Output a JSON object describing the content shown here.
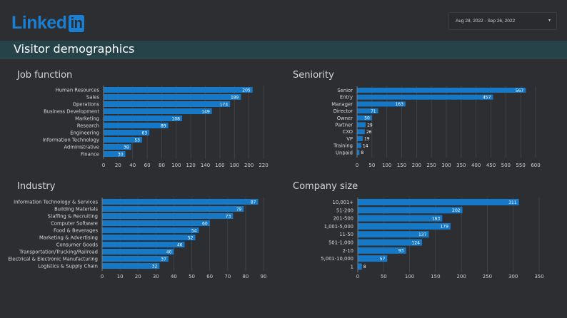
{
  "header": {
    "logo_text": "Linked",
    "logo_badge": "in",
    "date_range": "Aug 28, 2022 - Sep 26, 2022",
    "date_caret": "▾"
  },
  "banner": {
    "title": "Visitor demographics"
  },
  "colors": {
    "bar": "#1679c7",
    "background": "#2d2e32",
    "banner": "#26434a"
  },
  "panels": {
    "job_function": "Job function",
    "seniority": "Seniority",
    "industry": "Industry",
    "company_size": "Company size"
  },
  "chart_data": [
    {
      "id": "job_function",
      "type": "bar",
      "orientation": "horizontal",
      "title": "Job function",
      "categories": [
        "Human Resources",
        "Sales",
        "Operations",
        "Business Development",
        "Marketing",
        "Research",
        "Engineering",
        "Information Technology",
        "Administrative",
        "Finance"
      ],
      "values": [
        205,
        189,
        174,
        149,
        108,
        89,
        63,
        53,
        38,
        30
      ],
      "xlim": [
        0,
        220
      ],
      "xticks": [
        0,
        20,
        40,
        60,
        80,
        100,
        120,
        140,
        160,
        180,
        200,
        220
      ],
      "grid": true
    },
    {
      "id": "seniority",
      "type": "bar",
      "orientation": "horizontal",
      "title": "Seniority",
      "categories": [
        "Senior",
        "Entry",
        "Manager",
        "Director",
        "Owner",
        "Partner",
        "CXO",
        "VP",
        "Training",
        "Unpaid"
      ],
      "values": [
        567,
        457,
        163,
        71,
        50,
        29,
        26,
        19,
        14,
        8
      ],
      "xlim": [
        0,
        600
      ],
      "xticks": [
        0,
        50,
        100,
        150,
        200,
        250,
        300,
        350,
        400,
        450,
        500,
        550,
        600
      ],
      "grid": true
    },
    {
      "id": "industry",
      "type": "bar",
      "orientation": "horizontal",
      "title": "Industry",
      "categories": [
        "Information Technology & Services",
        "Building Materials",
        "Staffing & Recruiting",
        "Computer Software",
        "Food & Beverages",
        "Marketing & Advertising",
        "Consumer Goods",
        "Transportation/Trucking/Railroad",
        "Electrical & Electronic Manufacturing",
        "Logistics & Supply Chain"
      ],
      "values": [
        87,
        79,
        73,
        60,
        54,
        52,
        46,
        40,
        37,
        32
      ],
      "xlim": [
        0,
        90
      ],
      "xticks": [
        0,
        10,
        20,
        30,
        40,
        50,
        60,
        70,
        80,
        90
      ],
      "grid": true
    },
    {
      "id": "company_size",
      "type": "bar",
      "orientation": "horizontal",
      "title": "Company size",
      "categories": [
        "10,001+",
        "51-200",
        "201-500",
        "1,001-5,000",
        "11-50",
        "501-1,000",
        "2-10",
        "5,001-10,000",
        "1"
      ],
      "values": [
        311,
        202,
        163,
        179,
        137,
        124,
        93,
        57,
        8
      ],
      "xlim": [
        0,
        350
      ],
      "xticks": [
        0,
        50,
        100,
        150,
        200,
        250,
        300,
        350
      ],
      "grid": true
    }
  ]
}
